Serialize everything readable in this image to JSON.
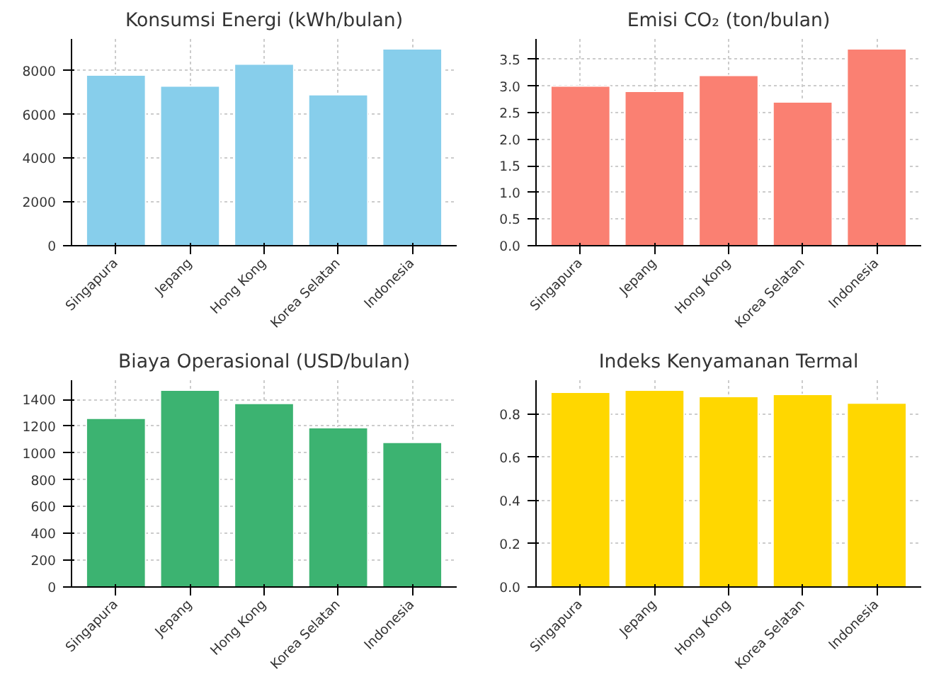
{
  "chart_data": [
    {
      "type": "bar",
      "title": "Konsumsi Energi (kWh/bulan)",
      "categories": [
        "Singapura",
        "Jepang",
        "Hong Kong",
        "Korea Selatan",
        "Indonesia"
      ],
      "values": [
        7800,
        7300,
        8300,
        6900,
        9000
      ],
      "color": "#87ceeb",
      "ylim": [
        0,
        9450
      ],
      "yticks": [
        0,
        2000,
        4000,
        6000,
        8000
      ],
      "grid": true
    },
    {
      "type": "bar",
      "title": "Emisi CO₂ (ton/bulan)",
      "categories": [
        "Singapura",
        "Jepang",
        "Hong Kong",
        "Korea Selatan",
        "Indonesia"
      ],
      "values": [
        3.0,
        2.9,
        3.2,
        2.7,
        3.7
      ],
      "color": "#fa8072",
      "ylim": [
        0,
        3.885
      ],
      "yticks": [
        {
          "value": 0,
          "label": "0.0"
        },
        0.5,
        {
          "value": 1,
          "label": "1.0"
        },
        1.5,
        {
          "value": 2,
          "label": "2.0"
        },
        2.5,
        {
          "value": 3,
          "label": "3.0"
        },
        3.5
      ],
      "grid": true
    },
    {
      "type": "bar",
      "title": "Biaya Operasional (USD/bulan)",
      "categories": [
        "Singapura",
        "Jepang",
        "Hong Kong",
        "Korea Selatan",
        "Indonesia"
      ],
      "values": [
        1260,
        1470,
        1370,
        1190,
        1080
      ],
      "color": "#3cb371",
      "ylim": [
        0,
        1543.5
      ],
      "yticks": [
        0,
        200,
        400,
        600,
        800,
        1000,
        1200,
        1400
      ],
      "grid": true
    },
    {
      "type": "bar",
      "title": "Indeks Kenyamanan Termal",
      "categories": [
        "Singapura",
        "Jepang",
        "Hong Kong",
        "Korea Selatan",
        "Indonesia"
      ],
      "values": [
        0.9,
        0.91,
        0.88,
        0.89,
        0.85
      ],
      "color": "#ffd700",
      "ylim": [
        0,
        0.9555
      ],
      "yticks": [
        {
          "value": 0,
          "label": "0.0"
        },
        0.2,
        0.4,
        0.6,
        0.8
      ],
      "grid": true
    }
  ]
}
